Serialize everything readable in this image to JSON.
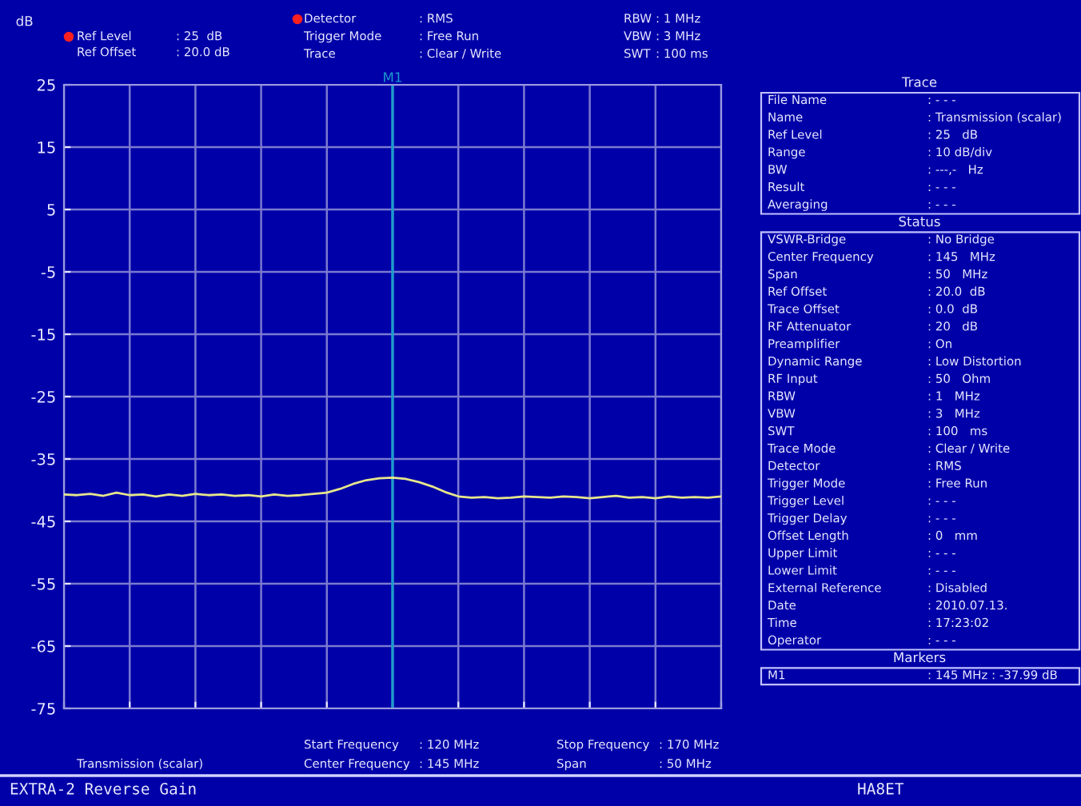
{
  "chart_data": {
    "type": "line",
    "title": "EXTRA-2 Reverse Gain",
    "ylabel": "dB",
    "categories": [
      null,
      null,
      null,
      null,
      null,
      null,
      null,
      null,
      null,
      null,
      null,
      null,
      null,
      null,
      null,
      null,
      null,
      null,
      null,
      null,
      null,
      null,
      null,
      null,
      null,
      null,
      null,
      null,
      null,
      null,
      null,
      null,
      null,
      null,
      null,
      null,
      null,
      null,
      null,
      null,
      null,
      null,
      null,
      null,
      null,
      null,
      null,
      null,
      null,
      null,
      null
    ],
    "series": [
      {
        "color": "#e6e68c",
        "values": [
          -40.7,
          -40.8,
          -40.6,
          -40.9,
          -40.4,
          -40.8,
          -40.7,
          -41.0,
          -40.7,
          -40.9,
          -40.6,
          -40.8,
          -40.7,
          -40.9,
          -40.8,
          -41.0,
          -40.7,
          -40.9,
          -40.8,
          -40.6,
          -40.4,
          -39.8,
          -39.0,
          -38.4,
          -38.1,
          -38.0,
          -38.2,
          -38.7,
          -39.4,
          -40.3,
          -41.0,
          -41.2,
          -41.1,
          -41.3,
          -41.2,
          -41.0,
          -41.1,
          -41.2,
          -41.0,
          -41.1,
          -41.3,
          -41.1,
          -40.9,
          -41.2,
          -41.1,
          -41.3,
          -41.0,
          -41.2,
          -41.1,
          -41.2,
          -41.0
        ]
      }
    ],
    "ylim": [
      -75,
      25
    ],
    "yticks": [
      25,
      15,
      5,
      -5,
      -15,
      -25,
      -35,
      -45,
      -55,
      -65,
      -75
    ],
    "grid": true,
    "tick_labels": "y",
    "marker": "none",
    "line_style": "solid",
    "annotations": [
      "Ref Level : 25  dB",
      "Ref Offset : 20.0 dB",
      "Detector : RMS",
      "Trigger Mode : Free Run",
      "Trace : Clear / Write",
      "RBW : 1 MHz",
      "VBW : 3 MHz",
      "SWT : 100 ms",
      "Transmission (scalar)",
      "Start Frequency : 120 MHz",
      "Center Frequency : 145 MHz",
      "Stop Frequency : 170 MHz",
      "Span : 50 MHz",
      "HA8ET",
      "M1",
      "Trace",
      "File Name : - - -",
      "Name : Transmission (scalar)",
      "Ref Level : 25   dB",
      "Range : 10 dB/div",
      "BW : ---,-   Hz",
      "Result : - - -",
      "Averaging : - - -",
      "Status",
      "VSWR-Bridge : No Bridge",
      "Center Frequency : 145   MHz",
      "Span : 50   MHz",
      "Ref Offset : 20.0  dB",
      "Trace Offset : 0.0  dB",
      "RF Attenuator : 20   dB",
      "Preamplifier : On",
      "Dynamic Range : Low Distortion",
      "RF Input : 50   Ohm",
      "RBW : 1   MHz",
      "VBW : 3   MHz",
      "SWT : 100   ms",
      "Trace Mode : Clear / Write",
      "Detector : RMS",
      "Trigger Mode : Free Run",
      "Trigger Level : - - -",
      "Trigger Delay : - - -",
      "Offset Length : 0   mm",
      "Upper Limit : - - -",
      "Lower Limit : - - -",
      "External Reference : Disabled",
      "Date : 2010.07.13.",
      "Time : 17:23:02",
      "Operator : - - -",
      "Markers",
      "M1 : 145 MHz : -37.99 dB"
    ]
  }
}
